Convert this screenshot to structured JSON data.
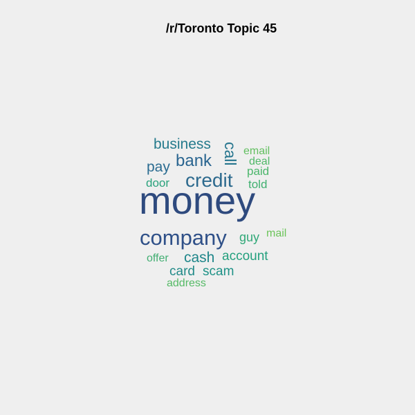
{
  "page": {
    "title": "/r/Toronto Topic 45"
  },
  "chart_data": {
    "type": "wordcloud",
    "title": "/r/Toronto Topic 45",
    "words": [
      {
        "text": "money",
        "weight": 1.0,
        "color": "#2e4a7e"
      },
      {
        "text": "company",
        "weight": 0.55,
        "color": "#2f5088"
      },
      {
        "text": "credit",
        "weight": 0.45,
        "color": "#2d6a8e"
      },
      {
        "text": "bank",
        "weight": 0.38,
        "color": "#2a6590"
      },
      {
        "text": "business",
        "weight": 0.33,
        "color": "#257a8c"
      },
      {
        "text": "call",
        "weight": 0.33,
        "color": "#26758e",
        "rotate": 90
      },
      {
        "text": "pay",
        "weight": 0.32,
        "color": "#2b6c91"
      },
      {
        "text": "cash",
        "weight": 0.31,
        "color": "#1f868a"
      },
      {
        "text": "card",
        "weight": 0.3,
        "color": "#218a88"
      },
      {
        "text": "scam",
        "weight": 0.3,
        "color": "#1f9287"
      },
      {
        "text": "account",
        "weight": 0.28,
        "color": "#24a07e"
      },
      {
        "text": "guy",
        "weight": 0.27,
        "color": "#30a878"
      },
      {
        "text": "door",
        "weight": 0.25,
        "color": "#2aa27c"
      },
      {
        "text": "told",
        "weight": 0.24,
        "color": "#40b070"
      },
      {
        "text": "paid",
        "weight": 0.24,
        "color": "#4bb66b"
      },
      {
        "text": "deal",
        "weight": 0.23,
        "color": "#50b868"
      },
      {
        "text": "email",
        "weight": 0.23,
        "color": "#62bf60"
      },
      {
        "text": "mail",
        "weight": 0.22,
        "color": "#6cc45a"
      },
      {
        "text": "offer",
        "weight": 0.22,
        "color": "#42ae72"
      },
      {
        "text": "address",
        "weight": 0.21,
        "color": "#55ba66"
      }
    ]
  }
}
